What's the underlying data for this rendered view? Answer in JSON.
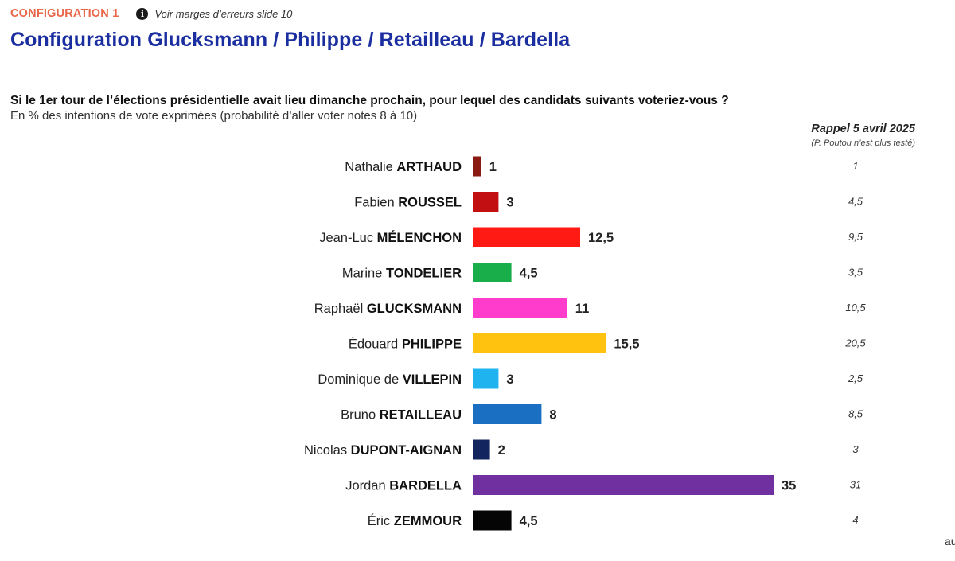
{
  "header": {
    "config_tag": "CONFIGURATION 1",
    "note": "Voir marges d’erreurs slide 10",
    "note_icon": "info-icon",
    "title": "Configuration Glucksmann / Philippe / Retailleau / Bardella",
    "question": "Si le 1er tour de l’élections présidentielle avait lieu dimanche prochain, pour lequel des candidats suivants voteriez-vous ?",
    "subtitle": "En % des intentions de vote exprimées (probabilité d’aller voter notes 8 à 10)"
  },
  "rappel": {
    "title": "Rappel 5 avril 2025",
    "note": "(P. Poutou n’est plus testé)"
  },
  "corner_text": "au",
  "chart_data": {
    "type": "bar",
    "orientation": "horizontal",
    "categories": [
      {
        "first": "Nathalie",
        "last": "ARTHAUD"
      },
      {
        "first": "Fabien",
        "last": "ROUSSEL"
      },
      {
        "first": "Jean-Luc",
        "last": "MÉLENCHON"
      },
      {
        "first": "Marine",
        "last": "TONDELIER"
      },
      {
        "first": "Raphaël",
        "last": "GLUCKSMANN"
      },
      {
        "first": "Édouard",
        "last": "PHILIPPE"
      },
      {
        "first": "Dominique de",
        "last": "VILLEPIN"
      },
      {
        "first": "Bruno",
        "last": "RETAILLEAU"
      },
      {
        "first": "Nicolas",
        "last": "DUPONT-AIGNAN"
      },
      {
        "first": "Jordan",
        "last": "BARDELLA"
      },
      {
        "first": "Éric",
        "last": "ZEMMOUR"
      }
    ],
    "values": [
      1,
      3,
      12.5,
      4.5,
      11,
      15.5,
      3,
      8,
      2,
      35,
      4.5
    ],
    "value_labels": [
      "1",
      "3",
      "12,5",
      "4,5",
      "11",
      "15,5",
      "3",
      "8",
      "2",
      "35",
      "4,5"
    ],
    "colors": [
      "#8b1a12",
      "#c20f12",
      "#ff1a14",
      "#1aae4a",
      "#ff3ccc",
      "#ffc20e",
      "#1fb3f0",
      "#1a6fc2",
      "#12255e",
      "#7030a0",
      "#050505"
    ],
    "rappel_values": [
      1,
      4.5,
      9.5,
      3.5,
      10.5,
      20.5,
      2.5,
      8.5,
      3,
      31,
      4
    ],
    "rappel_labels": [
      "1",
      "4,5",
      "9,5",
      "3,5",
      "10,5",
      "20,5",
      "2,5",
      "8,5",
      "3",
      "31",
      "4"
    ],
    "xlim": [
      0,
      35
    ],
    "grid": false,
    "legend": "none"
  }
}
